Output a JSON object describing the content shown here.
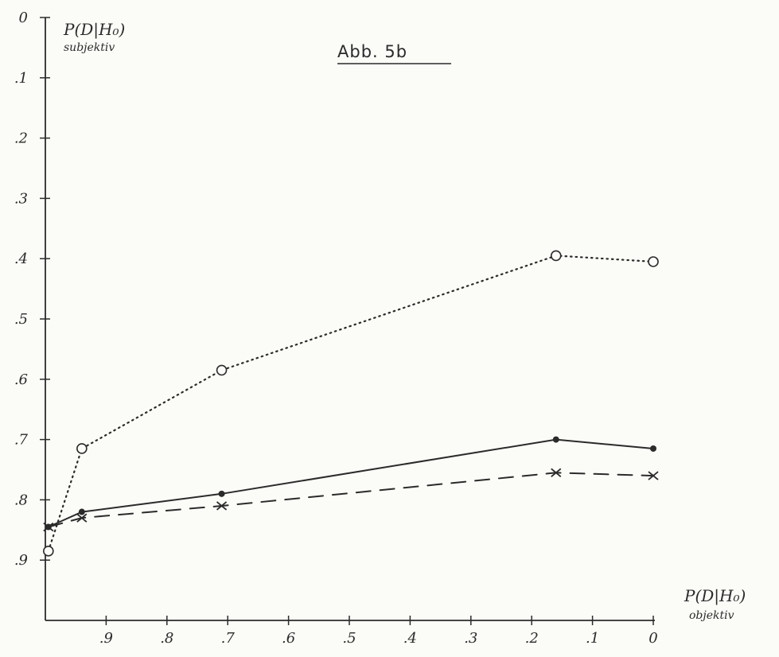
{
  "chart_data": {
    "type": "line",
    "title": "Abb. 5b",
    "ylabel": "P(D|H₀)",
    "ylabel_sub": "subjektiv",
    "xlabel": "P(D|H₀)",
    "xlabel_sub": "objektiv",
    "xlim": [
      1.0,
      0.0
    ],
    "ylim": [
      0.0,
      1.0
    ],
    "y_inverted": true,
    "y_ticks": [
      {
        "value": 0.0,
        "label": "0"
      },
      {
        "value": 0.1,
        "label": ".1"
      },
      {
        "value": 0.2,
        "label": ".2"
      },
      {
        "value": 0.3,
        "label": ".3"
      },
      {
        "value": 0.4,
        "label": ".4"
      },
      {
        "value": 0.5,
        "label": ".5"
      },
      {
        "value": 0.6,
        "label": ".6"
      },
      {
        "value": 0.7,
        "label": ".7"
      },
      {
        "value": 0.8,
        "label": ".8"
      },
      {
        "value": 0.9,
        "label": ".9"
      }
    ],
    "x_ticks": [
      {
        "value": 0.9,
        "label": ".9"
      },
      {
        "value": 0.8,
        "label": ".8"
      },
      {
        "value": 0.7,
        "label": ".7"
      },
      {
        "value": 0.6,
        "label": ".6"
      },
      {
        "value": 0.5,
        "label": ".5"
      },
      {
        "value": 0.4,
        "label": ".4"
      },
      {
        "value": 0.3,
        "label": ".3"
      },
      {
        "value": 0.2,
        "label": ".2"
      },
      {
        "value": 0.1,
        "label": ".1"
      },
      {
        "value": 0.0,
        "label": "0"
      }
    ],
    "grid": false,
    "series": [
      {
        "style": "dotted",
        "marker": "open-circle",
        "points": [
          [
            0.995,
            0.885
          ],
          [
            0.94,
            0.715
          ],
          [
            0.71,
            0.585
          ],
          [
            0.16,
            0.395
          ],
          [
            0.0,
            0.405
          ]
        ]
      },
      {
        "style": "solid",
        "marker": "filled-dot",
        "points": [
          [
            0.995,
            0.845
          ],
          [
            0.94,
            0.82
          ],
          [
            0.71,
            0.79
          ],
          [
            0.16,
            0.7
          ],
          [
            0.0,
            0.715
          ]
        ]
      },
      {
        "style": "dashed",
        "marker": "x",
        "points": [
          [
            0.995,
            0.845
          ],
          [
            0.94,
            0.83
          ],
          [
            0.71,
            0.81
          ],
          [
            0.16,
            0.755
          ],
          [
            0.0,
            0.76
          ]
        ]
      }
    ],
    "colors": {
      "ink": "#2b2b2b",
      "paper": "#fbfbf7"
    }
  }
}
